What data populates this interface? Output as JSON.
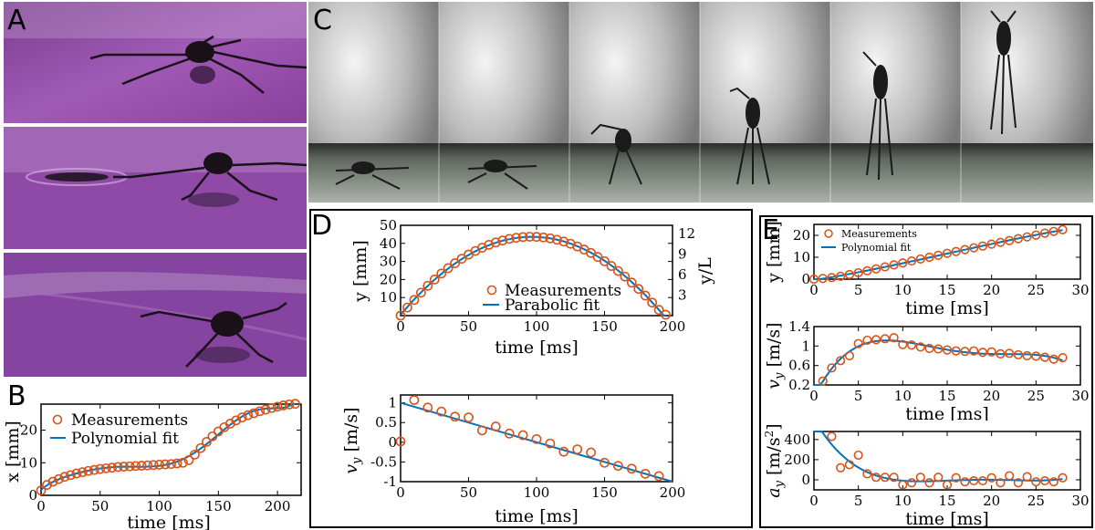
{
  "panel_labels": {
    "A": "A",
    "B": "B",
    "C": "C",
    "D": "D",
    "E": "E"
  },
  "legend": {
    "measurements": "Measurements",
    "parabolic": "Parabolic fit",
    "polynomial": "Polynomial fit"
  },
  "axes": {
    "time_ms": "time [ms]",
    "x_mm": "x [mm]",
    "y_mm": "y [mm]",
    "y_over_L": "y/L",
    "vy_unit": "[m/s]",
    "ay_unit": "[m/s",
    "ay_unit_exp": "2",
    "ay_unit_close": "]"
  },
  "colors": {
    "marker": "#d95319",
    "fit": "#0072bd",
    "photo_purple": "#9a4fb0",
    "water_gray": "#9aa29a"
  },
  "chart_data": [
    {
      "id": "B",
      "type": "scatter",
      "xlabel": "time [ms]",
      "ylabel": "x [mm]",
      "xlim": [
        0,
        220
      ],
      "ylim": [
        0,
        28
      ],
      "xticks": [
        0,
        50,
        100,
        150,
        200
      ],
      "yticks": [
        0,
        10,
        20
      ],
      "series": [
        {
          "name": "Measurements",
          "x": [
            0,
            5,
            10,
            15,
            20,
            25,
            30,
            35,
            40,
            45,
            50,
            55,
            60,
            65,
            70,
            75,
            80,
            85,
            90,
            95,
            100,
            105,
            110,
            115,
            120,
            125,
            130,
            135,
            140,
            145,
            150,
            155,
            160,
            165,
            170,
            175,
            180,
            185,
            190,
            195,
            200,
            205,
            210,
            215
          ],
          "y": [
            1.5,
            3.2,
            4.2,
            5.0,
            5.7,
            6.2,
            6.7,
            7.1,
            7.5,
            7.8,
            8.1,
            8.3,
            8.5,
            8.7,
            8.8,
            8.9,
            9.0,
            9.1,
            9.2,
            9.3,
            9.4,
            9.5,
            9.6,
            9.8,
            10.0,
            10.8,
            12.5,
            14.5,
            16.4,
            18.1,
            19.6,
            20.9,
            22.0,
            23.0,
            23.9,
            24.6,
            25.2,
            25.8,
            26.3,
            26.8,
            27.2,
            27.6,
            27.9,
            28.1
          ]
        },
        {
          "name": "Polynomial fit",
          "fit": true
        }
      ]
    },
    {
      "id": "D-top",
      "type": "scatter",
      "xlabel": "time [ms]",
      "ylabel": "y [mm]",
      "y2label": "y/L",
      "xlim": [
        0,
        200
      ],
      "ylim": [
        0,
        50
      ],
      "xticks": [
        0,
        50,
        100,
        150,
        200
      ],
      "yticks": [
        10,
        20,
        30,
        40,
        50
      ],
      "y2ticks": [
        3,
        6,
        9,
        12
      ],
      "series": [
        {
          "name": "Measurements",
          "x": [
            0,
            5,
            10,
            15,
            20,
            25,
            30,
            35,
            40,
            45,
            50,
            55,
            60,
            65,
            70,
            75,
            80,
            85,
            90,
            95,
            100,
            105,
            110,
            115,
            120,
            125,
            130,
            135,
            140,
            145,
            150,
            155,
            160,
            165,
            170,
            175,
            180,
            185,
            190,
            195
          ],
          "y": [
            0,
            4.5,
            8.7,
            12.7,
            16.5,
            20.0,
            23.3,
            26.3,
            29.0,
            31.5,
            33.8,
            35.8,
            37.6,
            39.2,
            40.5,
            41.6,
            42.5,
            43.1,
            43.5,
            43.7,
            43.6,
            43.3,
            42.8,
            42.0,
            41.0,
            39.8,
            38.3,
            36.6,
            34.7,
            32.5,
            30.1,
            27.5,
            24.7,
            21.6,
            18.3,
            14.8,
            11.1,
            7.2,
            3.2,
            0.5
          ]
        },
        {
          "name": "Parabolic fit",
          "fit": true
        }
      ]
    },
    {
      "id": "D-bottom",
      "type": "scatter",
      "xlabel": "time [ms]",
      "ylabel": "v_y [m/s]",
      "xlim": [
        0,
        200
      ],
      "ylim": [
        -1.0,
        1.2
      ],
      "xticks": [
        0,
        50,
        100,
        150,
        200
      ],
      "yticks": [
        1.0,
        0.5,
        0,
        -0.5,
        -1.0
      ],
      "series": [
        {
          "name": "Measurements",
          "x": [
            0,
            10,
            20,
            30,
            40,
            50,
            60,
            70,
            80,
            90,
            100,
            110,
            120,
            130,
            140,
            150,
            160,
            170,
            180,
            190
          ],
          "y": [
            0.02,
            1.07,
            0.88,
            0.78,
            0.65,
            0.63,
            0.3,
            0.4,
            0.22,
            0.18,
            0.08,
            -0.03,
            -0.24,
            -0.18,
            -0.26,
            -0.52,
            -0.6,
            -0.67,
            -0.8,
            -0.86
          ]
        },
        {
          "name": "fit",
          "fit": true,
          "line": [
            [
              0,
              1.0
            ],
            [
              200,
              -1.0
            ]
          ]
        }
      ]
    },
    {
      "id": "E-top",
      "type": "scatter",
      "xlabel": "time [ms]",
      "ylabel": "y [mm]",
      "xlim": [
        0,
        30
      ],
      "ylim": [
        0,
        25
      ],
      "xticks": [
        0,
        5,
        10,
        15,
        20,
        25,
        30
      ],
      "yticks": [
        0,
        10,
        20
      ],
      "series": [
        {
          "name": "Measurements",
          "x": [
            0,
            1,
            2,
            3,
            4,
            5,
            6,
            7,
            8,
            9,
            10,
            11,
            12,
            13,
            14,
            15,
            16,
            17,
            18,
            19,
            20,
            21,
            22,
            23,
            24,
            25,
            26,
            27,
            28
          ],
          "y": [
            0,
            0.3,
            0.7,
            1.3,
            2.1,
            2.9,
            3.8,
            4.7,
            5.6,
            6.5,
            7.4,
            8.3,
            9.2,
            10.0,
            10.9,
            11.8,
            12.6,
            13.5,
            14.3,
            15.1,
            16.0,
            16.8,
            17.6,
            18.5,
            19.3,
            20.1,
            21.0,
            21.8,
            22.6
          ]
        },
        {
          "name": "Polynomial fit",
          "fit": true
        }
      ]
    },
    {
      "id": "E-middle",
      "type": "scatter",
      "xlabel": "time [ms]",
      "ylabel": "v_y [m/s]",
      "xlim": [
        0,
        30
      ],
      "ylim": [
        0.2,
        1.4
      ],
      "xticks": [
        0,
        5,
        10,
        15,
        20,
        25,
        30
      ],
      "yticks": [
        0.2,
        0.6,
        1.0,
        1.4
      ],
      "series": [
        {
          "name": "Measurements",
          "x": [
            1,
            2,
            3,
            4,
            5,
            6,
            7,
            8,
            9,
            10,
            11,
            12,
            13,
            14,
            15,
            16,
            17,
            18,
            19,
            20,
            21,
            22,
            23,
            24,
            25,
            26,
            27,
            28
          ],
          "y": [
            0.28,
            0.55,
            0.7,
            0.8,
            1.05,
            1.12,
            1.13,
            1.15,
            1.17,
            1.03,
            1.02,
            0.98,
            0.95,
            0.94,
            0.92,
            0.9,
            0.89,
            0.9,
            0.87,
            0.88,
            0.84,
            0.85,
            0.82,
            0.8,
            0.79,
            0.77,
            0.73,
            0.76
          ]
        },
        {
          "name": "Polynomial fit",
          "fit": true
        }
      ]
    },
    {
      "id": "E-bottom",
      "type": "scatter",
      "xlabel": "time [ms]",
      "ylabel": "a_y [m/s^2]",
      "xlim": [
        0,
        30
      ],
      "ylim": [
        -100,
        480
      ],
      "xticks": [
        0,
        5,
        10,
        15,
        20,
        25,
        30
      ],
      "yticks": [
        0,
        200,
        400
      ],
      "series": [
        {
          "name": "Measurements",
          "x": [
            2,
            3,
            4,
            5,
            6,
            7,
            8,
            9,
            10,
            11,
            12,
            13,
            14,
            15,
            16,
            17,
            18,
            19,
            20,
            21,
            22,
            23,
            24,
            25,
            26,
            27,
            28
          ],
          "y": [
            430,
            120,
            150,
            245,
            60,
            25,
            25,
            25,
            -50,
            -30,
            25,
            -30,
            25,
            -50,
            20,
            -20,
            -10,
            -10,
            20,
            -30,
            40,
            -30,
            30,
            -20,
            -10,
            -20,
            20
          ]
        },
        {
          "name": "Polynomial fit",
          "fit": true
        }
      ]
    }
  ]
}
